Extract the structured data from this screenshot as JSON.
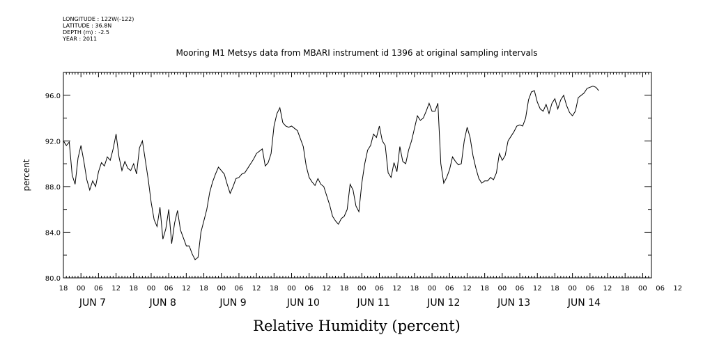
{
  "header": {
    "meta": [
      "LONGITUDE : 122W(-122)",
      "LATITUDE : 36.8N",
      "DEPTH (m) : -2.5",
      "YEAR : 2011"
    ]
  },
  "chart_data": {
    "type": "line",
    "title": "Mooring M1 Metsys data from MBARI instrument id 1396 at original sampling intervals",
    "xlabel": "Relative Humidity (percent)",
    "ylabel": "percent",
    "ylim": [
      80,
      98
    ],
    "yticks": [
      "80.0",
      "84.0",
      "88.0",
      "92.0",
      "96.0"
    ],
    "x_unit": "hours since JUN 6 18:00 (axis shows hour-of-day ticks)",
    "xlim": [
      0,
      201
    ],
    "xticks": [
      "18",
      "00",
      "06",
      "12",
      "18",
      "00",
      "06",
      "12",
      "18",
      "00",
      "06",
      "12",
      "18",
      "00",
      "06",
      "12",
      "18",
      "00",
      "06",
      "12",
      "18",
      "00",
      "06",
      "12",
      "18",
      "00",
      "06",
      "12",
      "18",
      "00",
      "06",
      "12",
      "18",
      "00",
      "06",
      "12"
    ],
    "day_labels": [
      "JUN  7",
      "JUN  8",
      "JUN  9",
      "JUN 10",
      "JUN 11",
      "JUN 12",
      "JUN 13",
      "JUN 14"
    ],
    "grid": false,
    "series": [
      {
        "points": [
          [
            0,
            92.0
          ],
          [
            1,
            91.6
          ],
          [
            2,
            91.9
          ],
          [
            3,
            89.0
          ],
          [
            4,
            88.2
          ],
          [
            5,
            90.5
          ],
          [
            6,
            91.6
          ],
          [
            7,
            90.2
          ],
          [
            8,
            88.6
          ],
          [
            9,
            87.7
          ],
          [
            10,
            88.5
          ],
          [
            11,
            88.0
          ],
          [
            12,
            89.3
          ],
          [
            13,
            90.1
          ],
          [
            14,
            89.8
          ],
          [
            15,
            90.6
          ],
          [
            16,
            90.3
          ],
          [
            17,
            91.3
          ],
          [
            18,
            92.6
          ],
          [
            19,
            90.6
          ],
          [
            20,
            89.4
          ],
          [
            21,
            90.2
          ],
          [
            22,
            89.6
          ],
          [
            23,
            89.4
          ],
          [
            24,
            90.0
          ],
          [
            25,
            89.1
          ],
          [
            26,
            91.4
          ],
          [
            27,
            92.0
          ],
          [
            28,
            90.3
          ],
          [
            29,
            88.6
          ],
          [
            30,
            86.6
          ],
          [
            31,
            85.1
          ],
          [
            32,
            84.5
          ],
          [
            33,
            86.2
          ],
          [
            34,
            83.4
          ],
          [
            35,
            84.3
          ],
          [
            36,
            86.0
          ],
          [
            37,
            83.0
          ],
          [
            38,
            84.8
          ],
          [
            39,
            85.9
          ],
          [
            40,
            84.2
          ],
          [
            41,
            83.5
          ],
          [
            42,
            82.8
          ],
          [
            43,
            82.8
          ],
          [
            44,
            82.1
          ],
          [
            45,
            81.6
          ],
          [
            46,
            81.8
          ],
          [
            47,
            84.0
          ],
          [
            48,
            85.0
          ],
          [
            49,
            86.0
          ],
          [
            50,
            87.5
          ],
          [
            51,
            88.4
          ],
          [
            52,
            89.1
          ],
          [
            53,
            89.7
          ],
          [
            54,
            89.4
          ],
          [
            55,
            89.1
          ],
          [
            56,
            88.2
          ],
          [
            57,
            87.4
          ],
          [
            58,
            88.0
          ],
          [
            59,
            88.7
          ],
          [
            60,
            88.8
          ],
          [
            61,
            89.1
          ],
          [
            62,
            89.2
          ],
          [
            63,
            89.6
          ],
          [
            64,
            90.0
          ],
          [
            65,
            90.4
          ],
          [
            66,
            90.9
          ],
          [
            67,
            91.1
          ],
          [
            68,
            91.3
          ],
          [
            69,
            89.8
          ],
          [
            70,
            90.1
          ],
          [
            71,
            90.9
          ],
          [
            72,
            93.3
          ],
          [
            73,
            94.4
          ],
          [
            74,
            94.9
          ],
          [
            75,
            93.6
          ],
          [
            76,
            93.3
          ],
          [
            77,
            93.2
          ],
          [
            78,
            93.3
          ],
          [
            79,
            93.1
          ],
          [
            80,
            92.9
          ],
          [
            81,
            92.2
          ],
          [
            82,
            91.5
          ],
          [
            83,
            89.8
          ],
          [
            84,
            88.8
          ],
          [
            85,
            88.4
          ],
          [
            86,
            88.1
          ],
          [
            87,
            88.7
          ],
          [
            88,
            88.2
          ],
          [
            89,
            88.0
          ],
          [
            90,
            87.2
          ],
          [
            91,
            86.4
          ],
          [
            92,
            85.4
          ],
          [
            93,
            85.0
          ],
          [
            94,
            84.7
          ],
          [
            95,
            85.2
          ],
          [
            96,
            85.4
          ],
          [
            97,
            86.0
          ],
          [
            98,
            88.2
          ],
          [
            99,
            87.7
          ],
          [
            100,
            86.3
          ],
          [
            101,
            85.8
          ],
          [
            102,
            88.3
          ],
          [
            103,
            90.0
          ],
          [
            104,
            91.2
          ],
          [
            105,
            91.6
          ],
          [
            106,
            92.6
          ],
          [
            107,
            92.3
          ],
          [
            108,
            93.3
          ],
          [
            109,
            92.0
          ],
          [
            110,
            91.6
          ],
          [
            111,
            89.2
          ],
          [
            112,
            88.8
          ],
          [
            113,
            90.1
          ],
          [
            114,
            89.3
          ],
          [
            115,
            91.5
          ],
          [
            116,
            90.2
          ],
          [
            117,
            90.0
          ],
          [
            118,
            91.2
          ],
          [
            119,
            92.0
          ],
          [
            120,
            93.1
          ],
          [
            121,
            94.2
          ],
          [
            122,
            93.8
          ],
          [
            123,
            94.0
          ],
          [
            124,
            94.6
          ],
          [
            125,
            95.3
          ],
          [
            126,
            94.6
          ],
          [
            127,
            94.6
          ],
          [
            128,
            95.3
          ],
          [
            129,
            90.0
          ],
          [
            130,
            88.3
          ],
          [
            131,
            88.8
          ],
          [
            132,
            89.5
          ],
          [
            133,
            90.6
          ],
          [
            134,
            90.2
          ],
          [
            135,
            89.9
          ],
          [
            136,
            90.0
          ],
          [
            137,
            92.0
          ],
          [
            138,
            93.2
          ],
          [
            139,
            92.3
          ],
          [
            140,
            90.7
          ],
          [
            141,
            89.6
          ],
          [
            142,
            88.7
          ],
          [
            143,
            88.3
          ],
          [
            144,
            88.5
          ],
          [
            145,
            88.5
          ],
          [
            146,
            88.8
          ],
          [
            147,
            88.6
          ],
          [
            148,
            89.2
          ],
          [
            149,
            90.9
          ],
          [
            150,
            90.3
          ],
          [
            151,
            90.7
          ],
          [
            152,
            92.0
          ],
          [
            153,
            92.4
          ],
          [
            154,
            92.8
          ],
          [
            155,
            93.3
          ],
          [
            156,
            93.4
          ],
          [
            157,
            93.3
          ],
          [
            158,
            94.0
          ],
          [
            159,
            95.6
          ],
          [
            160,
            96.3
          ],
          [
            161,
            96.4
          ],
          [
            162,
            95.4
          ],
          [
            163,
            94.8
          ],
          [
            164,
            94.6
          ],
          [
            165,
            95.2
          ],
          [
            166,
            94.4
          ],
          [
            167,
            95.3
          ],
          [
            168,
            95.7
          ],
          [
            169,
            94.8
          ],
          [
            170,
            95.6
          ],
          [
            171,
            96.0
          ],
          [
            172,
            95.1
          ],
          [
            173,
            94.5
          ],
          [
            174,
            94.2
          ],
          [
            175,
            94.6
          ],
          [
            176,
            95.8
          ],
          [
            177,
            96.0
          ],
          [
            178,
            96.2
          ],
          [
            179,
            96.6
          ],
          [
            180,
            96.7
          ],
          [
            181,
            96.8
          ],
          [
            182,
            96.7
          ],
          [
            183,
            96.4
          ]
        ]
      }
    ]
  }
}
